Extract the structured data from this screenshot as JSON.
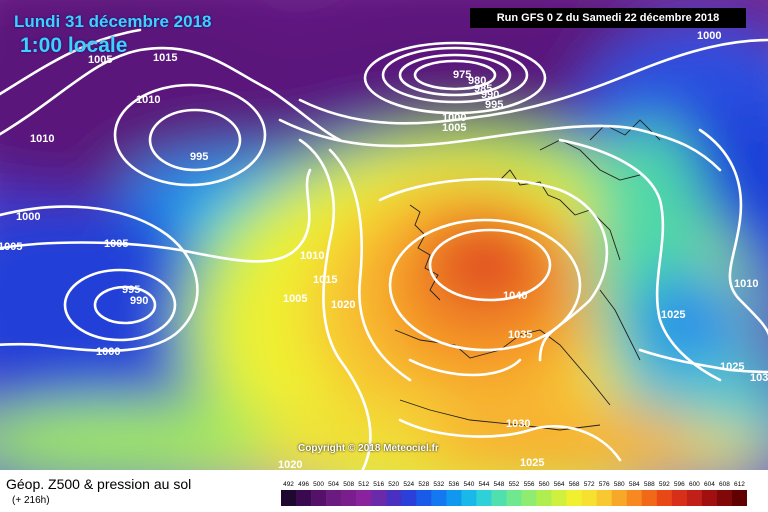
{
  "header": {
    "date": "Lundi 31 décembre 2018",
    "time": "1:00 locale",
    "run": "Run GFS 0 Z du Samedi 22 décembre 2018"
  },
  "copyright": "Copyright © 2018 Meteociel.fr",
  "footer": {
    "title": "Géop. Z500 & pression au sol",
    "subtitle": "(+ 216h)"
  },
  "scale": {
    "labels": [
      "492",
      "496",
      "500",
      "504",
      "508",
      "512",
      "516",
      "520",
      "524",
      "528",
      "532",
      "536",
      "540",
      "544",
      "548",
      "552",
      "556",
      "560",
      "564",
      "568",
      "572",
      "576",
      "580",
      "584",
      "588",
      "592",
      "596",
      "600",
      "604",
      "608",
      "612"
    ],
    "colors": [
      "#1e0830",
      "#3a0a50",
      "#55106a",
      "#6b1a80",
      "#7a1e8e",
      "#8a229e",
      "#6a2aaa",
      "#4a30c0",
      "#2a40d8",
      "#1a5ae8",
      "#1478f0",
      "#1098f0",
      "#18b8e8",
      "#30d0d8",
      "#50e0b0",
      "#70e890",
      "#90ec70",
      "#b0ee50",
      "#d0f040",
      "#f0f030",
      "#f8e030",
      "#f8c830",
      "#f8a828",
      "#f88820",
      "#f06818",
      "#e84818",
      "#d83018",
      "#c02018",
      "#a01010",
      "#800808",
      "#600000"
    ]
  },
  "contour_labels": [
    "1005",
    "1015",
    "1010",
    "1010",
    "995",
    "975",
    "980",
    "985",
    "990",
    "995",
    "1000",
    "1005",
    "1000",
    "1000",
    "1005",
    "1005",
    "995",
    "990",
    "1000",
    "1010",
    "1015",
    "1005",
    "1020",
    "1040",
    "1035",
    "1025",
    "1010",
    "1025",
    "1030",
    "1025",
    "1020",
    "103"
  ]
}
